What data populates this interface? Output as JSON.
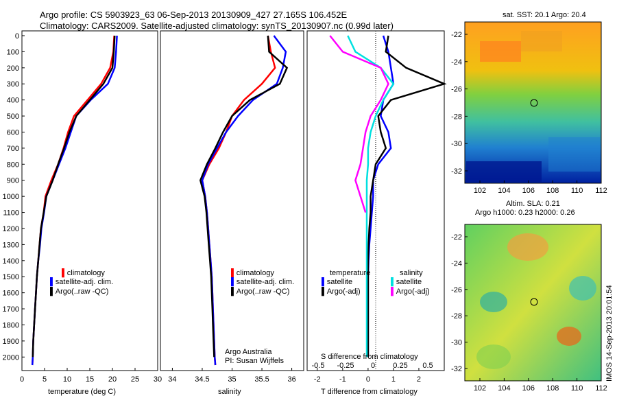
{
  "header": {
    "title_line1": "Argo profile: CS 5903923_63 06-Sep-2013 20130909_427 27.165S 106.452E",
    "title_line2": "Climatology: CARS2009. Satellite-adjusted climatology: synTS_20130907.nc (0.99d later)"
  },
  "depth_ticks": [
    "0",
    "100",
    "200",
    "300",
    "400",
    "500",
    "600",
    "700",
    "800",
    "900",
    "1000",
    "1100",
    "1200",
    "1300",
    "1400",
    "1500",
    "1600",
    "1700",
    "1800",
    "1900",
    "2000"
  ],
  "panels": {
    "temperature": {
      "xlabel": "temperature (deg C)",
      "xticks": [
        "0",
        "5",
        "10",
        "15",
        "20",
        "25",
        "30"
      ],
      "legend": [
        "climatology",
        "satellite-adj. clim.",
        "Argo(..raw -QC)"
      ]
    },
    "salinity": {
      "xlabel": "salinity",
      "xticks": [
        "34",
        "34.5",
        "35",
        "35.5",
        "36"
      ],
      "legend": [
        "climatology",
        "satellite-adj. clim.",
        "Argo(..raw -QC)"
      ],
      "note_line1": "Argo Australia",
      "note_line2": "PI: Susan Wijffels"
    },
    "difference": {
      "xlabel": "T difference from climatology",
      "xticks": [
        "-2",
        "-1",
        "0",
        "1",
        "2"
      ],
      "top_label": "S difference from climatology",
      "top_ticks": [
        "-0.5",
        "-0.25",
        "0",
        "0.25",
        "0.5"
      ],
      "legend_temperature_title": "temperature",
      "legend_salinity_title": "salinity",
      "legend_temperature": [
        "satellite",
        "Argo(-adj)"
      ],
      "legend_salinity": [
        "satellite",
        "Argo(-adj)"
      ]
    }
  },
  "maps": {
    "sst": {
      "title": "sat. SST: 20.1  Argo: 20.4",
      "lon_ticks": [
        "102",
        "104",
        "106",
        "108",
        "110",
        "112"
      ],
      "lat_ticks": [
        "-22",
        "-24",
        "-26",
        "-28",
        "-30",
        "-32"
      ]
    },
    "sla": {
      "title_line1": "Altim. SLA: 0.21",
      "title_line2": "Argo h1000: 0.23 h2000: 0.26",
      "lon_ticks": [
        "102",
        "104",
        "106",
        "108",
        "110",
        "112"
      ],
      "lat_ticks": [
        "-22",
        "-24",
        "-26",
        "-28",
        "-30",
        "-32"
      ]
    },
    "float_position": {
      "lon": 106.452,
      "lat": -27.165
    }
  },
  "imos_stamp": "IMOS 14-Sep-2013 20:01:54",
  "colors": {
    "climatology": "#ff0000",
    "satellite_adj": "#0000ff",
    "argo": "#000000",
    "salinity_satellite": "#00e0e0",
    "salinity_argo": "#ff00ff"
  },
  "chart_data": [
    {
      "type": "line",
      "ylabel": "",
      "xlabel": "temperature (deg C)",
      "xlim": [
        0,
        30
      ],
      "ylim": [
        2050,
        0
      ],
      "series": [
        {
          "name": "climatology",
          "x": [
            20.4,
            20.2,
            19.5,
            17.5,
            14.5,
            11.5,
            10.2,
            9.2,
            8.0,
            6.5,
            5.2,
            4.8,
            4.2,
            3.9,
            3.6,
            3.3,
            3.1,
            2.9,
            2.7,
            2.5,
            2.4,
            2.3
          ],
          "y": [
            0,
            100,
            200,
            300,
            400,
            500,
            600,
            700,
            800,
            900,
            1000,
            1100,
            1200,
            1300,
            1400,
            1500,
            1600,
            1700,
            1800,
            1900,
            2000,
            2050
          ]
        },
        {
          "name": "satellite-adj. clim.",
          "x": [
            21.0,
            20.8,
            20.5,
            19.0,
            15.2,
            12.0,
            10.8,
            9.6,
            8.2,
            6.8,
            5.4,
            4.9,
            4.3,
            4.0,
            3.6,
            3.3,
            3.1,
            2.9,
            2.7,
            2.5,
            2.4,
            2.3
          ],
          "y": [
            0,
            100,
            200,
            300,
            400,
            500,
            600,
            700,
            800,
            900,
            1000,
            1100,
            1200,
            1300,
            1400,
            1500,
            1600,
            1700,
            1800,
            1900,
            2000,
            2050
          ]
        },
        {
          "name": "Argo(..raw -QC)",
          "x": [
            20.5,
            20.3,
            20.0,
            18.0,
            15.0,
            12.0,
            10.5,
            9.3,
            8.0,
            6.8,
            5.4,
            4.8,
            4.2,
            3.9,
            3.6,
            3.3,
            3.1,
            2.9,
            2.7,
            2.5,
            2.4
          ],
          "y": [
            0,
            100,
            200,
            300,
            400,
            500,
            600,
            700,
            800,
            900,
            1000,
            1100,
            1200,
            1300,
            1400,
            1500,
            1600,
            1700,
            1800,
            1900,
            2000
          ]
        }
      ]
    },
    {
      "type": "line",
      "xlabel": "salinity",
      "xlim": [
        33.8,
        36.2
      ],
      "ylim": [
        2050,
        0
      ],
      "series": [
        {
          "name": "climatology",
          "x": [
            35.6,
            35.65,
            35.72,
            35.5,
            35.2,
            35.0,
            34.9,
            34.78,
            34.62,
            34.5,
            34.55,
            34.58,
            34.6,
            34.62,
            34.64,
            34.66,
            34.67,
            34.68,
            34.69,
            34.7,
            34.71,
            34.72
          ],
          "y": [
            0,
            100,
            200,
            300,
            400,
            500,
            600,
            700,
            800,
            900,
            1000,
            1100,
            1200,
            1300,
            1400,
            1500,
            1600,
            1700,
            1800,
            1900,
            2000,
            2050
          ]
        },
        {
          "name": "satellite-adj. clim.",
          "x": [
            35.7,
            35.9,
            35.85,
            35.75,
            35.35,
            35.1,
            34.9,
            34.75,
            34.6,
            34.5,
            34.55,
            34.58,
            34.6,
            34.62,
            34.64,
            34.66,
            34.67,
            34.68,
            34.69,
            34.7,
            34.71,
            34.72
          ],
          "y": [
            0,
            100,
            200,
            300,
            400,
            500,
            600,
            700,
            800,
            900,
            1000,
            1100,
            1200,
            1300,
            1400,
            1500,
            1600,
            1700,
            1800,
            1900,
            2000,
            2050
          ]
        },
        {
          "name": "Argo(..raw -QC)",
          "x": [
            35.6,
            35.62,
            35.92,
            35.8,
            35.3,
            35.0,
            34.85,
            34.72,
            34.58,
            34.47,
            34.54,
            34.57,
            34.59,
            34.61,
            34.63,
            34.65,
            34.66,
            34.67,
            34.68,
            34.69,
            34.7
          ],
          "y": [
            0,
            100,
            200,
            300,
            400,
            500,
            600,
            700,
            800,
            900,
            1000,
            1100,
            1200,
            1300,
            1400,
            1500,
            1600,
            1700,
            1800,
            1900,
            2000
          ]
        }
      ]
    },
    {
      "type": "line",
      "xlabel": "T difference from climatology",
      "xlim": [
        -2.4,
        3.0
      ],
      "ylim": [
        2050,
        0
      ],
      "series": [
        {
          "name": "temperature satellite",
          "x": [
            0.6,
            0.8,
            0.9,
            1.0,
            0.6,
            0.5,
            0.8,
            0.9,
            0.4,
            0.2,
            0.2,
            0.15,
            0.1,
            0.05,
            0.02,
            0.0,
            0.0,
            0.0,
            0.0,
            0.0,
            0.0
          ],
          "y": [
            0,
            100,
            200,
            300,
            400,
            500,
            600,
            700,
            800,
            900,
            1000,
            1100,
            1200,
            1300,
            1400,
            1500,
            1600,
            1700,
            1800,
            1900,
            2000
          ]
        },
        {
          "name": "temperature Argo(-adj)",
          "x": [
            0.8,
            0.7,
            1.5,
            3.0,
            0.9,
            0.4,
            0.5,
            0.7,
            0.3,
            0.2,
            0.1,
            0.1,
            0.05,
            0.02,
            0.0,
            0.0,
            0.0,
            0.0,
            0.0,
            0.0,
            0.0
          ],
          "y": [
            0,
            100,
            200,
            300,
            400,
            500,
            600,
            700,
            800,
            900,
            1000,
            1100,
            1200,
            1300,
            1400,
            1500,
            1600,
            1700,
            1800,
            1900,
            2000
          ]
        },
        {
          "name": "salinity satellite",
          "x": [
            -0.8,
            -0.5,
            0.5,
            1.0,
            0.6,
            0.3,
            0.1,
            0.0,
            0.0,
            -0.05,
            -0.05,
            -0.05,
            -0.05,
            -0.05,
            -0.05,
            -0.05,
            -0.05,
            -0.05,
            -0.05,
            -0.05,
            -0.05
          ],
          "y": [
            0,
            100,
            200,
            300,
            400,
            500,
            600,
            700,
            800,
            900,
            1000,
            1100,
            1200,
            1300,
            1400,
            1500,
            1600,
            1700,
            1800,
            1900,
            2000
          ]
        },
        {
          "name": "salinity Argo(-adj)",
          "x": [
            -1.5,
            -1.0,
            0.5,
            0.8,
            0.5,
            0.1,
            -0.1,
            -0.2,
            -0.3,
            -0.5,
            -0.3,
            -0.1
          ],
          "y": [
            0,
            100,
            200,
            300,
            400,
            500,
            600,
            700,
            800,
            900,
            1000,
            1100
          ]
        }
      ]
    }
  ]
}
